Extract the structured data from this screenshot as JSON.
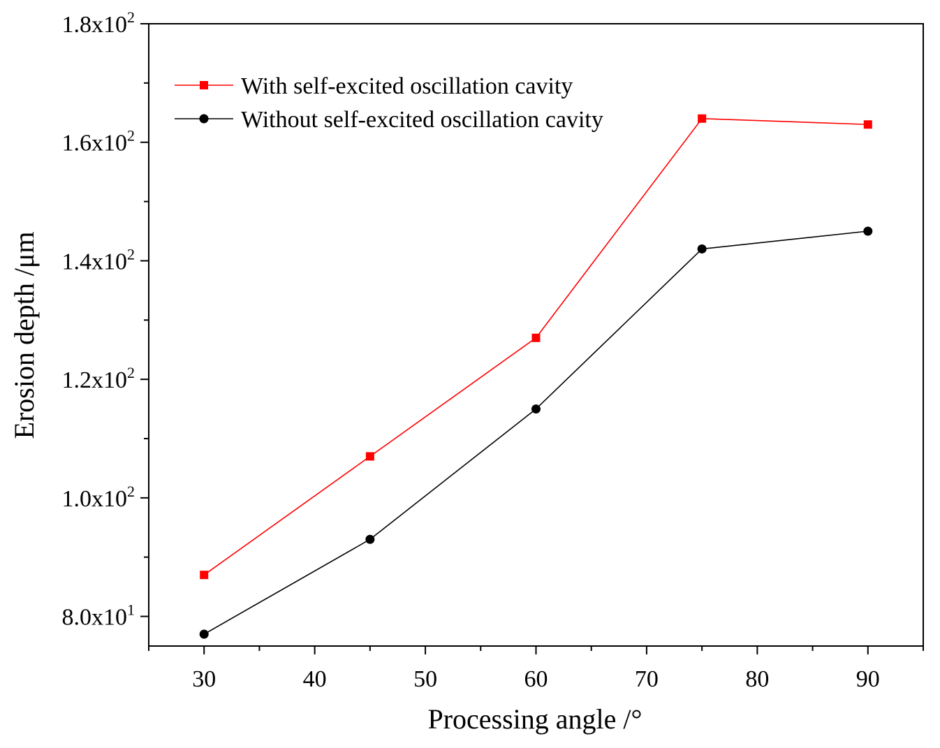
{
  "chart_data": {
    "type": "line",
    "title": "",
    "xlabel": "Processing angle /°",
    "ylabel": "Erosion depth /μm",
    "xlim": [
      25,
      95
    ],
    "ylim": [
      75,
      180
    ],
    "x": [
      30,
      45,
      60,
      75,
      90
    ],
    "x_ticks": [
      30,
      40,
      50,
      60,
      70,
      80,
      90
    ],
    "x_tick_labels": [
      "30",
      "40",
      "50",
      "60",
      "70",
      "80",
      "90"
    ],
    "y_ticks": [
      {
        "value": 80,
        "mantissa": "8.0x10",
        "exponent": "1"
      },
      {
        "value": 100,
        "mantissa": "1.0x10",
        "exponent": "2"
      },
      {
        "value": 120,
        "mantissa": "1.2x10",
        "exponent": "2"
      },
      {
        "value": 140,
        "mantissa": "1.4x10",
        "exponent": "2"
      },
      {
        "value": 160,
        "mantissa": "1.6x10",
        "exponent": "2"
      },
      {
        "value": 180,
        "mantissa": "1.8x10",
        "exponent": "2"
      }
    ],
    "series": [
      {
        "name": "With self-excited oscillation cavity",
        "values": [
          87,
          107,
          127,
          164,
          163
        ],
        "color": "#ff0000",
        "marker": "square"
      },
      {
        "name": "Without self-excited oscillation cavity",
        "values": [
          77,
          93,
          115,
          142,
          145
        ],
        "color": "#000000",
        "marker": "circle"
      }
    ],
    "legend": {
      "placement": "top-left"
    },
    "grid": false
  }
}
